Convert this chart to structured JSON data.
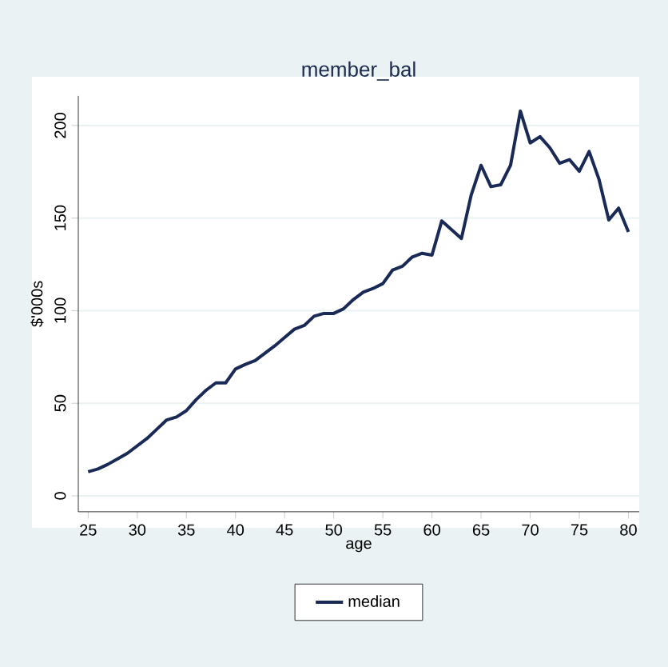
{
  "chart_data": {
    "type": "line",
    "title": "member_bal",
    "xlabel": "age",
    "ylabel": "$'000s",
    "x": [
      25,
      26,
      27,
      28,
      29,
      30,
      31,
      32,
      33,
      34,
      35,
      36,
      37,
      38,
      39,
      40,
      41,
      42,
      43,
      44,
      45,
      46,
      47,
      48,
      49,
      50,
      51,
      52,
      53,
      54,
      55,
      56,
      57,
      58,
      59,
      60,
      61,
      62,
      63,
      64,
      65,
      66,
      67,
      68,
      69,
      70,
      71,
      72,
      73,
      74,
      75,
      76,
      77,
      78,
      79,
      80
    ],
    "series": [
      {
        "name": "median",
        "color": "#1a2a57",
        "values": [
          13,
          14.5,
          17,
          20,
          23,
          27,
          31,
          36,
          41,
          42.6,
          46,
          52,
          57,
          61,
          61,
          68.5,
          71,
          73,
          77,
          81,
          85.5,
          90,
          92,
          97,
          98.5,
          98.5,
          101,
          106,
          110,
          112,
          114.6,
          122,
          124,
          129,
          131,
          130,
          148.5,
          143.7,
          139,
          162.6,
          178.5,
          167,
          168,
          178.5,
          207.8,
          190.6,
          194,
          188,
          179.6,
          181.6,
          175.3,
          186,
          171,
          149,
          155.4,
          142.5
        ]
      }
    ],
    "xlim": [
      24,
      81.1
    ],
    "ylim": [
      -8.6,
      216
    ],
    "xticks": [
      25,
      30,
      35,
      40,
      45,
      50,
      55,
      60,
      65,
      70,
      75,
      80
    ],
    "yticks": [
      0,
      50,
      100,
      150,
      200
    ],
    "grid": "y",
    "legend": "bottom",
    "marker": "none",
    "line_style": "solid"
  }
}
